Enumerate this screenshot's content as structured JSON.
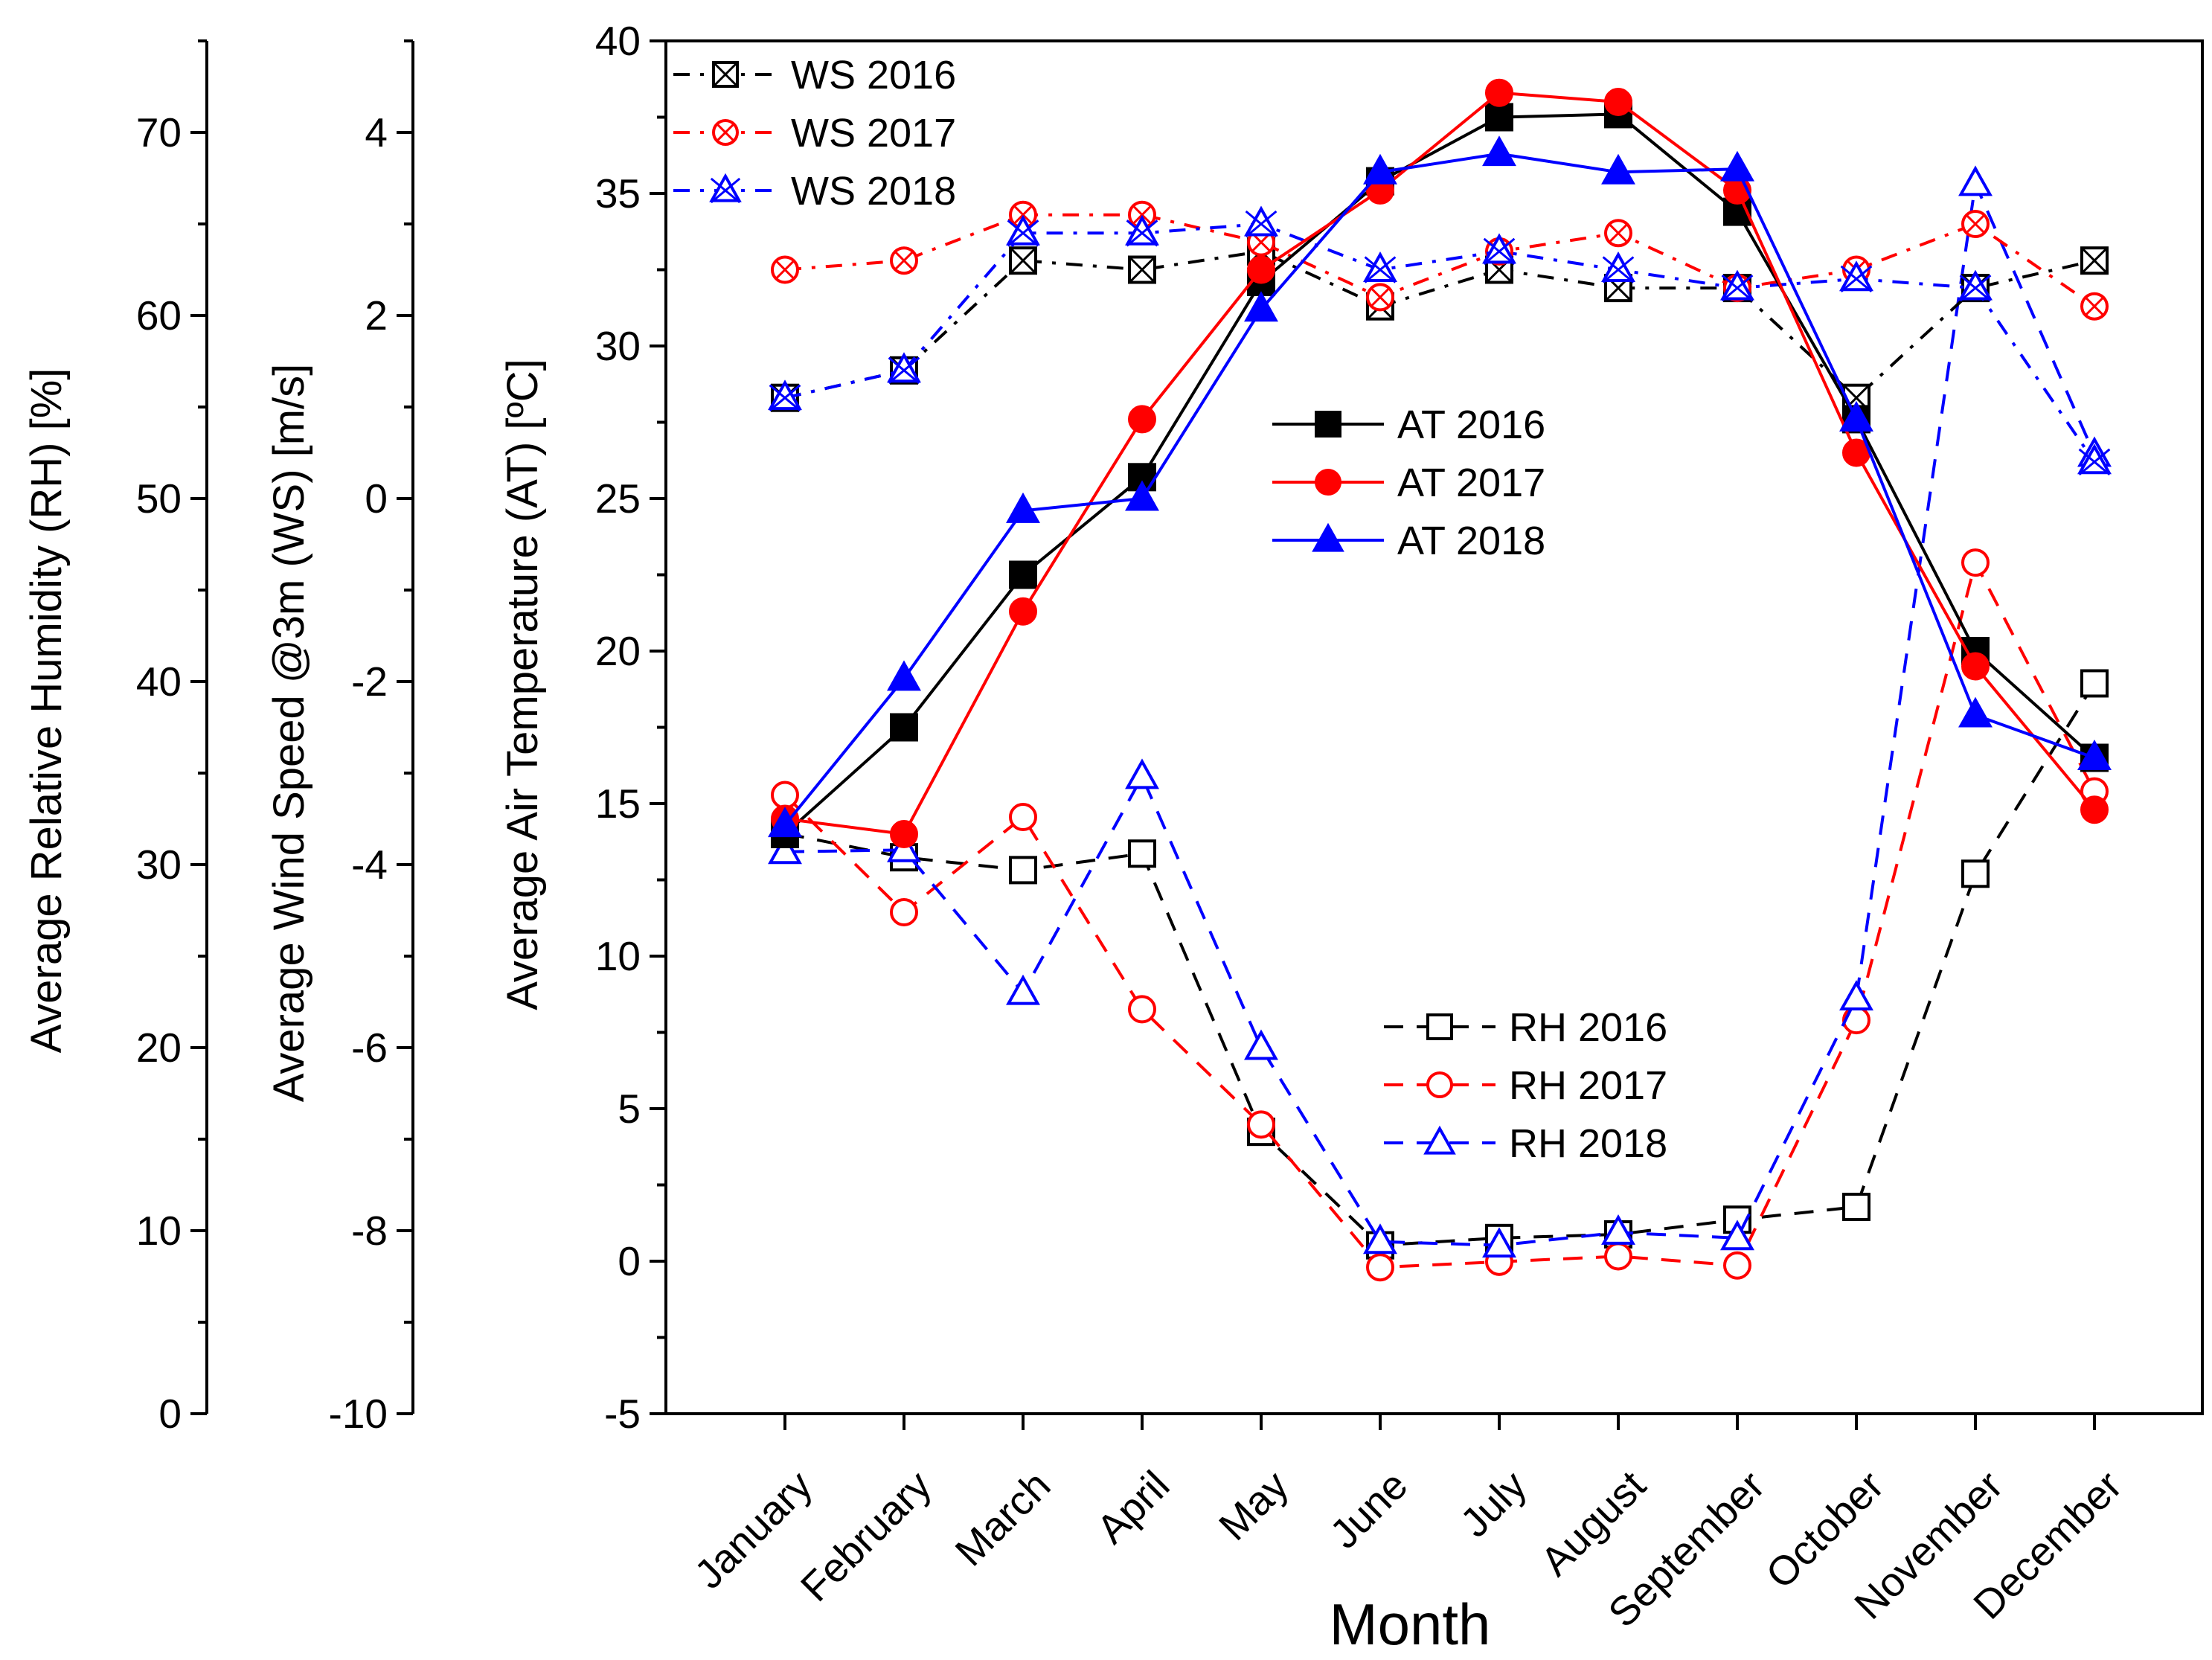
{
  "chart_data": {
    "type": "line",
    "xlabel": "Month",
    "categories": [
      "January",
      "February",
      "March",
      "April",
      "May",
      "June",
      "July",
      "August",
      "September",
      "October",
      "November",
      "December"
    ],
    "axes": {
      "at": {
        "label": "Average Air Temperature (AT) [ºC]",
        "ylim": [
          -5,
          40
        ],
        "ticks": [
          "-5",
          "0",
          "5",
          "10",
          "15",
          "20",
          "25",
          "30",
          "35",
          "40"
        ]
      },
      "ws": {
        "label": "Average Wind Speed @3m (WS) [m/s]",
        "ylim": [
          -10,
          5
        ],
        "ticks": [
          "-10",
          "-8",
          "-6",
          "-4",
          "-2",
          "0",
          "2",
          "4"
        ]
      },
      "rh": {
        "label": "Average Relative Humidity (RH) [%]",
        "ylim": [
          0,
          75
        ],
        "ticks": [
          "0",
          "10",
          "20",
          "30",
          "40",
          "50",
          "60",
          "70"
        ]
      }
    },
    "series": [
      {
        "name": "WS 2016",
        "axis": "ws",
        "color": "#000000",
        "style": "dashdot",
        "marker": "square-x",
        "values": [
          1.1,
          1.4,
          2.6,
          2.5,
          2.7,
          2.1,
          2.5,
          2.3,
          2.3,
          1.1,
          2.3,
          2.6
        ]
      },
      {
        "name": "WS 2017",
        "axis": "ws",
        "color": "#ff0000",
        "style": "dashdot",
        "marker": "circle-x",
        "values": [
          2.5,
          2.6,
          3.1,
          3.1,
          2.8,
          2.2,
          2.7,
          2.9,
          2.3,
          2.5,
          3.0,
          2.1
        ]
      },
      {
        "name": "WS 2018",
        "axis": "ws",
        "color": "#0000ff",
        "style": "dashdot",
        "marker": "triangle-x",
        "values": [
          1.1,
          1.4,
          2.9,
          2.9,
          3.0,
          2.5,
          2.7,
          2.5,
          2.3,
          2.4,
          2.3,
          0.4
        ]
      },
      {
        "name": "AT 2016",
        "axis": "at",
        "color": "#000000",
        "style": "solid",
        "marker": "square",
        "values": [
          14.0,
          17.5,
          22.5,
          25.7,
          32.1,
          35.4,
          37.5,
          37.6,
          34.4,
          27.6,
          20.0,
          16.5
        ]
      },
      {
        "name": "AT 2017",
        "axis": "at",
        "color": "#ff0000",
        "style": "solid",
        "marker": "circle",
        "values": [
          14.5,
          14.0,
          21.3,
          27.6,
          32.5,
          35.1,
          38.3,
          38.0,
          35.1,
          26.5,
          19.5,
          14.8
        ]
      },
      {
        "name": "AT 2018",
        "axis": "at",
        "color": "#0000ff",
        "style": "solid",
        "marker": "triangle",
        "values": [
          14.3,
          19.1,
          24.6,
          25.0,
          31.2,
          35.7,
          36.3,
          35.7,
          35.8,
          27.6,
          17.9,
          16.5
        ]
      },
      {
        "name": "RH 2016",
        "axis": "rh",
        "color": "#000000",
        "style": "dashed",
        "marker": "open-square",
        "values": [
          31.7,
          30.4,
          29.7,
          30.6,
          15.4,
          9.2,
          9.6,
          9.8,
          10.6,
          11.3,
          29.5,
          39.9
        ]
      },
      {
        "name": "RH 2017",
        "axis": "rh",
        "color": "#ff0000",
        "style": "dashed",
        "marker": "open-circle",
        "values": [
          33.8,
          27.4,
          32.6,
          22.1,
          15.8,
          8.0,
          8.3,
          8.6,
          8.1,
          21.5,
          46.5,
          34.0
        ]
      },
      {
        "name": "RH 2018",
        "axis": "rh",
        "color": "#0000ff",
        "style": "dashed",
        "marker": "open-triangle",
        "values": [
          30.7,
          30.8,
          23.0,
          34.8,
          20.0,
          9.4,
          9.2,
          9.9,
          9.6,
          22.7,
          67.2,
          52.4
        ]
      }
    ],
    "legends": [
      {
        "position": "top-left",
        "series": [
          "WS 2016",
          "WS 2017",
          "WS 2018"
        ]
      },
      {
        "position": "center",
        "series": [
          "AT 2016",
          "AT 2017",
          "AT 2018"
        ]
      },
      {
        "position": "bottom-center",
        "series": [
          "RH 2016",
          "RH 2017",
          "RH 2018"
        ]
      }
    ]
  }
}
